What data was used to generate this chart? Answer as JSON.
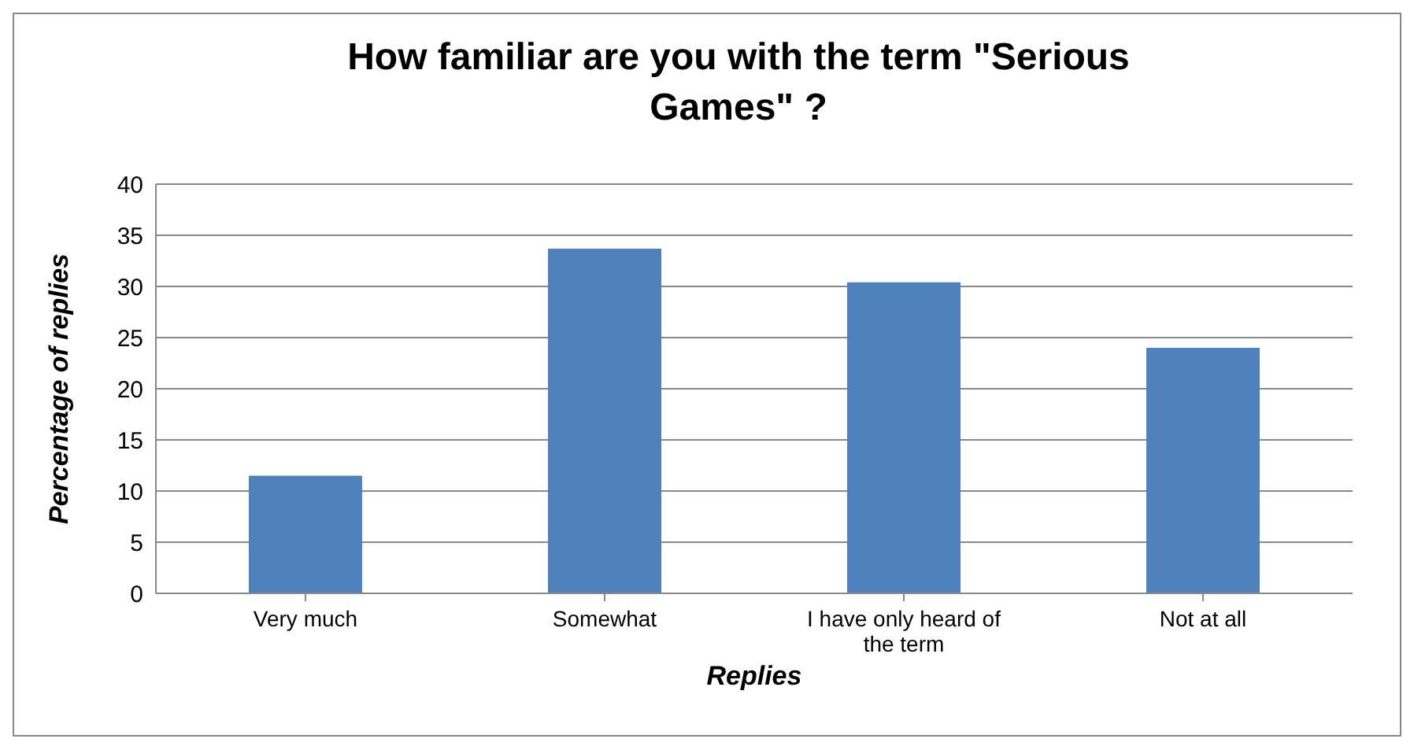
{
  "chart_data": {
    "type": "bar",
    "title": "How familiar are you with the term \"Serious Games\" ?",
    "xlabel": "Replies",
    "ylabel": "Percentage of replies",
    "categories": [
      "Very much",
      "Somewhat",
      "I have only heard of the term",
      "Not at all"
    ],
    "values": [
      11.5,
      33.7,
      30.4,
      24.0
    ],
    "color": "#4f81bd",
    "ylim": [
      0,
      40
    ],
    "yticks": [
      0,
      5,
      10,
      15,
      20,
      25,
      30,
      35,
      40
    ],
    "grid": "y"
  }
}
